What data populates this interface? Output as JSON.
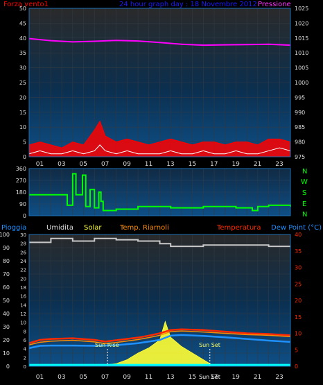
{
  "header": {
    "left_label": "Forza vento1",
    "title": "24 hour graph day : 18 Novembre 2012",
    "right_label": "Pressione"
  },
  "bottom_header": {
    "pioggia": "Pioggia",
    "umidita": "Umidita",
    "solar": "Solar",
    "temp_riarnoli": "Temp. Riarnoli",
    "temperatura": "Temperatura",
    "dewpoint": "Dew Point (°C)"
  },
  "wind_dir_labels": [
    "N",
    "W",
    "S",
    "E",
    "N"
  ],
  "sun_labels": {
    "rise": "Sun Rise",
    "set": "Sun Set",
    "set_axis": "Sun Set"
  },
  "x_ticks": [
    "01",
    "03",
    "05",
    "07",
    "09",
    "11",
    "13",
    "15",
    "17",
    "19",
    "21",
    "23"
  ],
  "colors": {
    "wind": "#ff0000",
    "gust": "#ffffff",
    "pressure": "#ff00ff",
    "direction": "#00ff00",
    "humidity": "#c8c8c8",
    "temperature": "#ff2a00",
    "dewpoint": "#1e90ff",
    "temp_riarnoli": "#ff8c00",
    "solar": "#ffff33",
    "rain": "#00ffff"
  },
  "chart_data": [
    {
      "type": "line",
      "title": "24 hour graph day : 18 Novembre 2012",
      "x_ticks": [
        "01",
        "03",
        "05",
        "07",
        "09",
        "11",
        "13",
        "15",
        "17",
        "19",
        "21",
        "23"
      ],
      "left_axis": {
        "label": "Forza vento1",
        "ticks": [
          0,
          5,
          10,
          15,
          20,
          25,
          30,
          35,
          40,
          45,
          50
        ],
        "range": [
          0,
          50
        ]
      },
      "right_axis": {
        "label": "Pressione",
        "ticks": [
          975,
          980,
          985,
          990,
          995,
          1000,
          1005,
          1010,
          1015,
          1020,
          1025
        ],
        "range": [
          975,
          1025
        ]
      },
      "series": [
        {
          "axis": "right",
          "hours": [
            0,
            2,
            4,
            6,
            8,
            10,
            12,
            14,
            16,
            18,
            20,
            22,
            24
          ],
          "values": [
            1014.8,
            1014.1,
            1013.7,
            1013.9,
            1014.2,
            1014.0,
            1013.5,
            1012.9,
            1012.6,
            1012.7,
            1012.8,
            1012.9,
            1012.6
          ]
        },
        {
          "axis": "left",
          "hours": [
            0,
            1,
            2,
            3,
            4,
            5,
            6,
            6.5,
            7,
            8,
            9,
            10,
            11,
            12,
            13,
            14,
            15,
            16,
            17,
            18,
            19,
            20,
            21,
            22,
            23,
            24
          ],
          "values": [
            4,
            5,
            4,
            3,
            5,
            4,
            9,
            12,
            7,
            5,
            6,
            5,
            4,
            5,
            6,
            5,
            4,
            5,
            5,
            4,
            5,
            5,
            4,
            6,
            6,
            5
          ]
        },
        {
          "axis": "left",
          "hours": [
            0,
            1,
            2,
            3,
            4,
            5,
            6,
            6.5,
            7,
            8,
            9,
            10,
            11,
            12,
            13,
            14,
            15,
            16,
            17,
            18,
            19,
            20,
            21,
            22,
            23,
            24
          ],
          "values": [
            1,
            2,
            1,
            1,
            2,
            1,
            2,
            4,
            2,
            1,
            2,
            1,
            1,
            1,
            2,
            1,
            1,
            2,
            1,
            1,
            2,
            1,
            1,
            2,
            3,
            2
          ]
        }
      ]
    },
    {
      "type": "line",
      "left_axis": {
        "ticks": [
          0,
          90,
          180,
          270,
          360
        ],
        "range": [
          0,
          360
        ]
      },
      "right_axis": {
        "labels": [
          "N",
          "W",
          "S",
          "E",
          "N"
        ]
      },
      "series": [
        {
          "hours": [
            0,
            2,
            3.5,
            4,
            4.3,
            4.9,
            5.2,
            5.6,
            6,
            6.4,
            6.6,
            6.8,
            7.3,
            8,
            10,
            13,
            16,
            19,
            20.5,
            21,
            22,
            24
          ],
          "values": [
            160,
            160,
            80,
            320,
            160,
            310,
            70,
            200,
            60,
            180,
            110,
            40,
            40,
            50,
            70,
            60,
            70,
            60,
            40,
            70,
            80,
            70
          ]
        }
      ]
    },
    {
      "type": "line",
      "left_axis": {
        "ticks": [
          0,
          10,
          20,
          30,
          40,
          50,
          60,
          70,
          80,
          90,
          100
        ],
        "range": [
          0,
          100
        ]
      },
      "inner_left_axis": {
        "ticks": [
          0,
          2,
          4,
          6,
          8,
          10,
          12,
          14,
          16,
          18,
          20,
          22,
          24,
          26,
          28,
          30
        ],
        "range": [
          0,
          30
        ]
      },
      "right_axis": {
        "ticks": [
          0,
          5,
          10,
          15,
          20,
          25,
          30,
          35,
          40
        ],
        "range": [
          0,
          40
        ]
      },
      "series": [
        {
          "axis": "left",
          "hours": [
            0,
            2,
            4,
            6,
            8,
            10,
            12,
            13,
            14,
            16,
            18,
            20,
            22,
            24
          ],
          "values": [
            94,
            97,
            95,
            97,
            96,
            95,
            93,
            91,
            91,
            92,
            92,
            92,
            91,
            91
          ]
        },
        {
          "axis": "right",
          "hours": [
            0,
            1,
            2,
            4,
            6,
            7,
            8,
            10,
            11,
            12,
            13,
            14,
            16,
            18,
            20,
            22,
            24
          ],
          "values": [
            7.0,
            8.0,
            8.3,
            8.5,
            8.0,
            7.5,
            7.9,
            8.7,
            9.3,
            10.0,
            11.0,
            11.2,
            11.0,
            10.5,
            10.0,
            9.8,
            9.4
          ]
        },
        {
          "axis": "right",
          "hours": [
            0,
            1,
            2,
            4,
            6,
            7,
            8,
            10,
            11,
            12,
            13,
            14,
            16,
            18,
            20,
            22,
            24
          ],
          "values": [
            6.5,
            7.3,
            7.6,
            7.9,
            7.4,
            6.9,
            7.2,
            8.1,
            8.7,
            9.4,
            10.5,
            10.7,
            10.4,
            10.0,
            9.6,
            9.4,
            9.0
          ]
        },
        {
          "axis": "right",
          "hours": [
            0,
            1,
            2,
            4,
            6,
            8,
            10,
            12,
            13,
            14,
            16,
            18,
            20,
            22,
            24
          ],
          "values": [
            5.5,
            6.2,
            6.3,
            6.3,
            6.2,
            6.4,
            7.0,
            8.0,
            9.3,
            9.5,
            9.2,
            8.8,
            8.3,
            7.8,
            7.4
          ]
        },
        {
          "axis": "left",
          "hours": [
            6,
            7,
            8,
            9,
            10,
            11,
            12,
            12.5,
            13,
            14,
            15,
            16,
            17
          ],
          "values": [
            0,
            1,
            2,
            5,
            10,
            14,
            20,
            34,
            22,
            15,
            10,
            5,
            0
          ]
        },
        {
          "axis": "left",
          "hours": [
            0,
            24
          ],
          "values": [
            1,
            1
          ]
        }
      ],
      "annotations": [
        "Sun Rise",
        "Sun Set"
      ]
    }
  ]
}
